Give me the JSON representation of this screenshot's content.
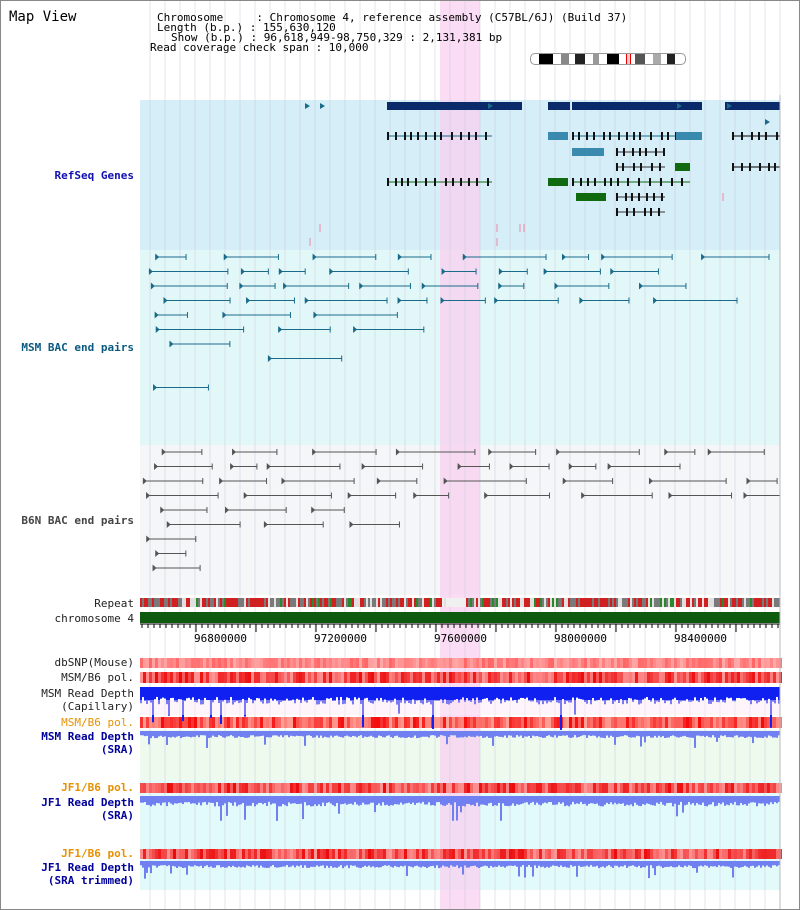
{
  "header": {
    "title": "Map View",
    "chromosome": "Chromosome     : Chromosome 4, reference assembly (C57BL/6J) (Build 37)",
    "length": "Length (b.p.) : 155,630,120",
    "show": "Show (b.p.) : 96,618,949-98,750,329 : 2,131,381 bp",
    "coverage": "Read coverage check span : 10,000"
  },
  "tracks": {
    "refseq": "RefSeq Genes",
    "msm_bac": "MSM BAC end pairs",
    "b6n_bac": "B6N BAC end pairs",
    "repeat": "Repeat",
    "chromosome": "chromosome 4",
    "dbsnp": "dbSNP(Mouse)",
    "msm_b6_pol": "MSM/B6 pol.",
    "msm_read_depth_cap_1": "MSM Read Depth",
    "msm_read_depth_cap_2": "(Capillary)",
    "msm_b6_pol_sra": "MSM/B6 pol.",
    "msm_read_depth_sra_1": "MSM Read Depth",
    "msm_read_depth_sra_2": "(SRA)",
    "jf1_b6_pol_1": "JF1/B6 pol.",
    "jf1_read_depth_1": "JF1 Read Depth",
    "jf1_read_depth_sra": "(SRA)",
    "jf1_b6_pol_2": "JF1/B6 pol.",
    "jf1_read_depth_2": "JF1 Read Depth",
    "jf1_read_depth_trimmed": "(SRA trimmed)"
  },
  "axis": {
    "ticks": [
      "96800000",
      "97200000",
      "97600000",
      "98000000",
      "98400000"
    ]
  },
  "colors": {
    "refseq_bg": "#d6eef8",
    "msm_bg": "#e2f8f8",
    "b6n_bg": "#f4f6f8",
    "highlight": "#f8d0f0",
    "gene_dark": "#0a2a6a",
    "gene_green": "#106a10",
    "bac_teal": "#1a6a8a",
    "depth_blue": "#1020f0",
    "depth_light": "#7080f0"
  }
}
